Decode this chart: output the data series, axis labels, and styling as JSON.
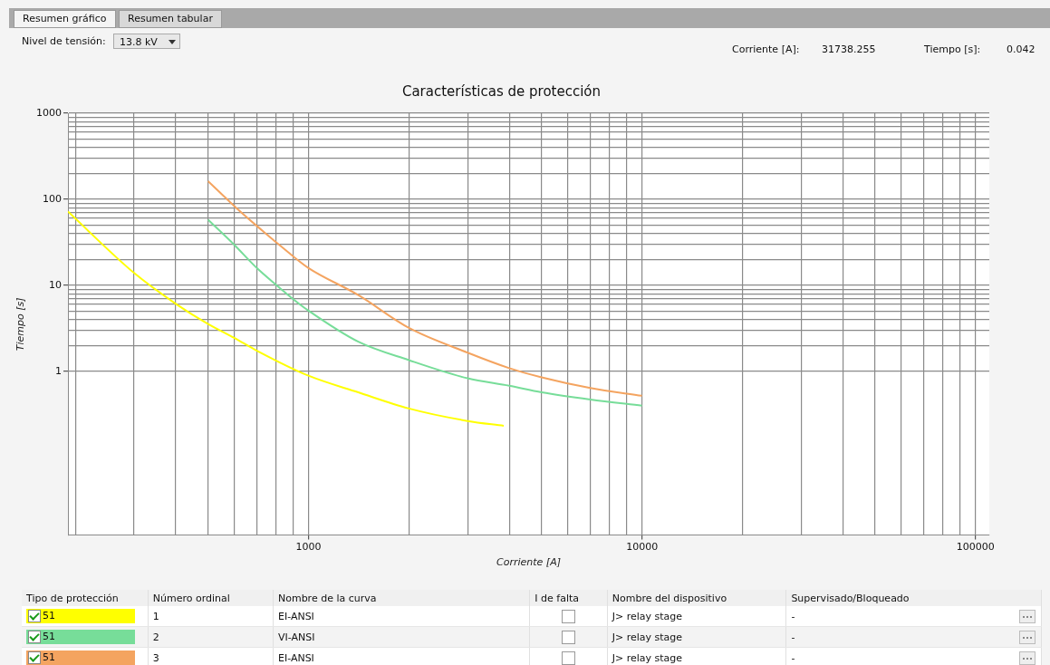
{
  "chart_data": {
    "type": "line",
    "title": "Características de protección",
    "xlabel": "Corriente [A]",
    "ylabel": "Tiempo [s]",
    "log": "xy",
    "grid": true,
    "legend": "bottom",
    "marker": "none",
    "line_style": "solid",
    "xlim": [
      190,
      110000
    ],
    "ylim": [
      0.0125,
      1000
    ],
    "xticks": [
      {
        "value": 200,
        "label": null
      },
      {
        "value": 300,
        "label": null
      },
      {
        "value": 400,
        "label": null
      },
      {
        "value": 500,
        "label": null
      },
      {
        "value": 600,
        "label": null
      },
      {
        "value": 700,
        "label": null
      },
      {
        "value": 800,
        "label": null
      },
      {
        "value": 900,
        "label": null
      },
      1000,
      {
        "value": 2000,
        "label": null
      },
      {
        "value": 3000,
        "label": null
      },
      {
        "value": 4000,
        "label": null
      },
      {
        "value": 5000,
        "label": null
      },
      {
        "value": 6000,
        "label": null
      },
      {
        "value": 7000,
        "label": null
      },
      {
        "value": 8000,
        "label": null
      },
      {
        "value": 9000,
        "label": null
      },
      10000,
      {
        "value": 20000,
        "label": null
      },
      {
        "value": 30000,
        "label": null
      },
      {
        "value": 40000,
        "label": null
      },
      {
        "value": 50000,
        "label": null
      },
      {
        "value": 60000,
        "label": null
      },
      {
        "value": 70000,
        "label": null
      },
      {
        "value": 80000,
        "label": null
      },
      {
        "value": 90000,
        "label": null
      },
      100000
    ],
    "yticks": [
      1,
      {
        "value": 2,
        "label": null
      },
      {
        "value": 3,
        "label": null
      },
      {
        "value": 4,
        "label": null
      },
      {
        "value": 5,
        "label": null
      },
      {
        "value": 6,
        "label": null
      },
      {
        "value": 7,
        "label": null
      },
      {
        "value": 8,
        "label": null
      },
      {
        "value": 9,
        "label": null
      },
      10,
      {
        "value": 20,
        "label": null
      },
      {
        "value": 30,
        "label": null
      },
      {
        "value": 40,
        "label": null
      },
      {
        "value": 50,
        "label": null
      },
      {
        "value": 60,
        "label": null
      },
      {
        "value": 70,
        "label": null
      },
      {
        "value": 80,
        "label": null
      },
      {
        "value": 90,
        "label": null
      },
      100,
      {
        "value": 200,
        "label": null
      },
      {
        "value": 300,
        "label": null
      },
      {
        "value": 400,
        "label": null
      },
      {
        "value": 500,
        "label": null
      },
      {
        "value": 600,
        "label": null
      },
      {
        "value": 700,
        "label": null
      },
      {
        "value": 800,
        "label": null
      },
      {
        "value": 900,
        "label": null
      },
      1000
    ],
    "series": [
      {
        "name": "51",
        "color": "#ffff00",
        "x": [
          190,
          300,
          400,
          500,
          600,
          700,
          1000,
          1410,
          2000,
          3000,
          3850
        ],
        "values": [
          72,
          13.9,
          6.1,
          3.55,
          2.44,
          1.74,
          0.89,
          0.57,
          0.37,
          0.265,
          0.233
        ]
      },
      {
        "name": "51",
        "color": "#77dd99",
        "x": [
          500,
          600,
          700,
          800,
          900,
          1000,
          1410,
          2000,
          3000,
          4000,
          5000,
          7000,
          10000
        ],
        "values": [
          58,
          29.4,
          15.9,
          10.1,
          6.9,
          5.07,
          2.21,
          1.35,
          0.83,
          0.68,
          0.57,
          0.47,
          0.4
        ]
      },
      {
        "name": "51",
        "color": "#f4a460",
        "x": [
          500,
          600,
          700,
          800,
          900,
          1000,
          1410,
          2000,
          3000,
          4000,
          5000,
          7000,
          10000
        ],
        "values": [
          162,
          83,
          49,
          31.6,
          21.7,
          15.9,
          7.7,
          3.2,
          1.65,
          1.09,
          0.85,
          0.64,
          0.52
        ]
      }
    ],
    "annotations": [
      "Resumen gráfico",
      "Resumen tabular",
      "Nivel de tensión:",
      "13.8 kV",
      "Corriente [A]:",
      "31738.255",
      "Tiempo [s]:",
      "0.042",
      "Tipo de protección",
      "Número ordinal",
      "Nombre de la curva",
      "I de falta",
      "Nombre del dispositivo",
      "Supervisado/Bloqueado",
      "1",
      "EI-ANSI",
      "J> relay stage",
      "-",
      "2",
      "VI-ANSI",
      "J> relay stage",
      "-",
      "3",
      "EI-ANSI",
      "J> relay stage",
      "-"
    ]
  }
}
